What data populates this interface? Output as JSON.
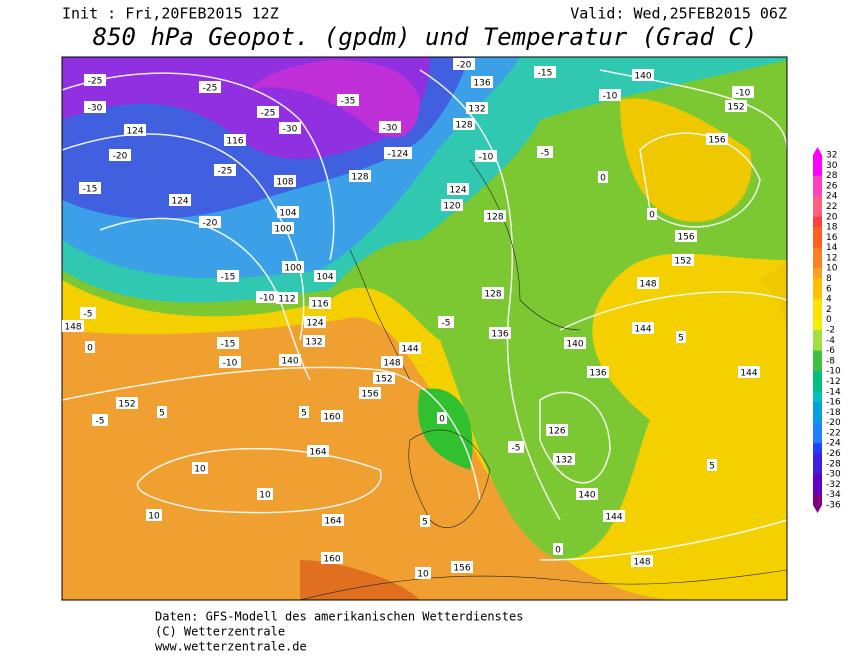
{
  "header": {
    "init": "Init : Fri,20FEB2015 12Z",
    "valid": "Valid: Wed,25FEB2015 06Z",
    "title": "850 hPa Geopot. (gpdm) und Temperatur (Grad C)"
  },
  "footer": [
    "Daten: GFS-Modell des amerikanischen Wetterdienstes",
    "(C) Wetterzentrale",
    "www.wetterzentrale.de"
  ],
  "colorbar": {
    "labels": [
      "32",
      "30",
      "28",
      "26",
      "24",
      "22",
      "20",
      "18",
      "16",
      "14",
      "12",
      "10",
      "8",
      "6",
      "4",
      "2",
      "0",
      "-2",
      "-4",
      "-6",
      "-8",
      "-10",
      "-12",
      "-14",
      "-16",
      "-18",
      "-20",
      "-22",
      "-24",
      "-26",
      "-28",
      "-30",
      "-32",
      "-34",
      "-36"
    ]
  },
  "contour_labels": [
    "-25",
    "-25",
    "-30",
    "124",
    "-20",
    "-15",
    "124",
    "-20",
    "-25",
    "-30",
    "116",
    "-25",
    "108",
    "104",
    "100",
    "100",
    "104",
    "112",
    "116",
    "124",
    "132",
    "140",
    "-15",
    "-10",
    "-5",
    "148",
    "0",
    "-15",
    "-10",
    "152",
    "-5",
    "5",
    "5",
    "160",
    "164",
    "10",
    "10",
    "10",
    "164",
    "160",
    "5",
    "10",
    "156",
    "148",
    "152",
    "156",
    "144",
    "0",
    "-5",
    "126",
    "132",
    "140",
    "144",
    "0",
    "148",
    "5",
    "136",
    "140",
    "144",
    "148",
    "152",
    "156",
    "156",
    "152",
    "140",
    "-10",
    "-10",
    "-15",
    "-20",
    "136",
    "132",
    "128",
    "-10",
    "124",
    "120",
    "128",
    "-5",
    "128",
    "136",
    "-5",
    "0",
    "0",
    "5",
    "144",
    "-30",
    "-124",
    "128",
    "-35"
  ]
}
